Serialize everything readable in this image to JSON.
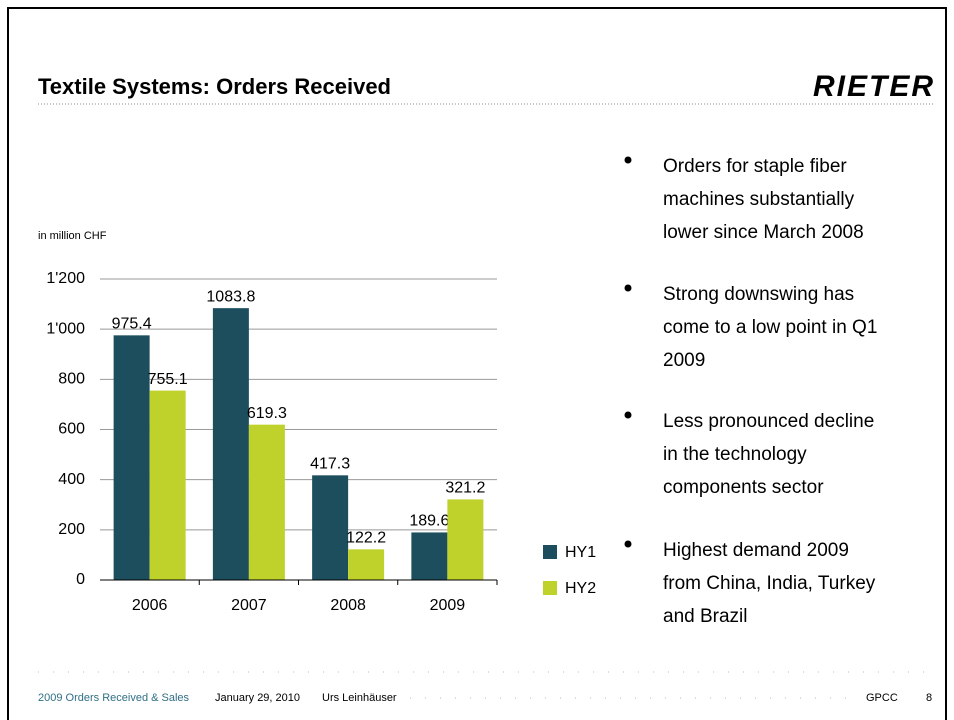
{
  "header": {
    "title": "Textile Systems: Orders Received",
    "logo": "RIETER"
  },
  "chart_data": {
    "type": "bar",
    "unit_label": "in million CHF",
    "categories": [
      "2006",
      "2007",
      "2008",
      "2009"
    ],
    "series": [
      {
        "name": "HY1",
        "color": "#1d4e5e",
        "values": [
          975.4,
          1083.8,
          417.3,
          189.6
        ]
      },
      {
        "name": "HY2",
        "color": "#bfd22b",
        "values": [
          755.1,
          619.3,
          122.2,
          321.2
        ]
      }
    ],
    "ylim": [
      0,
      1200
    ],
    "yticks": [
      0,
      200,
      400,
      600,
      800,
      {
        "value": 1000,
        "label": "1'000"
      },
      {
        "value": 1200,
        "label": "1'200"
      }
    ],
    "grid": true
  },
  "bullets": [
    [
      "Orders for staple fiber",
      "machines substantially",
      "lower since March 2008"
    ],
    [
      "Strong downswing has",
      "come to a low point in Q1",
      "2009"
    ],
    [
      "Less pronounced decline",
      "in the technology",
      "components sector"
    ],
    [
      "Highest demand 2009",
      "from China, India, Turkey",
      "and Brazil"
    ]
  ],
  "footer": {
    "presentation": "2009 Orders Received & Sales",
    "date": "January 29, 2010",
    "author": "Urs Leinhäuser",
    "org": "GPCC",
    "page": "8"
  }
}
